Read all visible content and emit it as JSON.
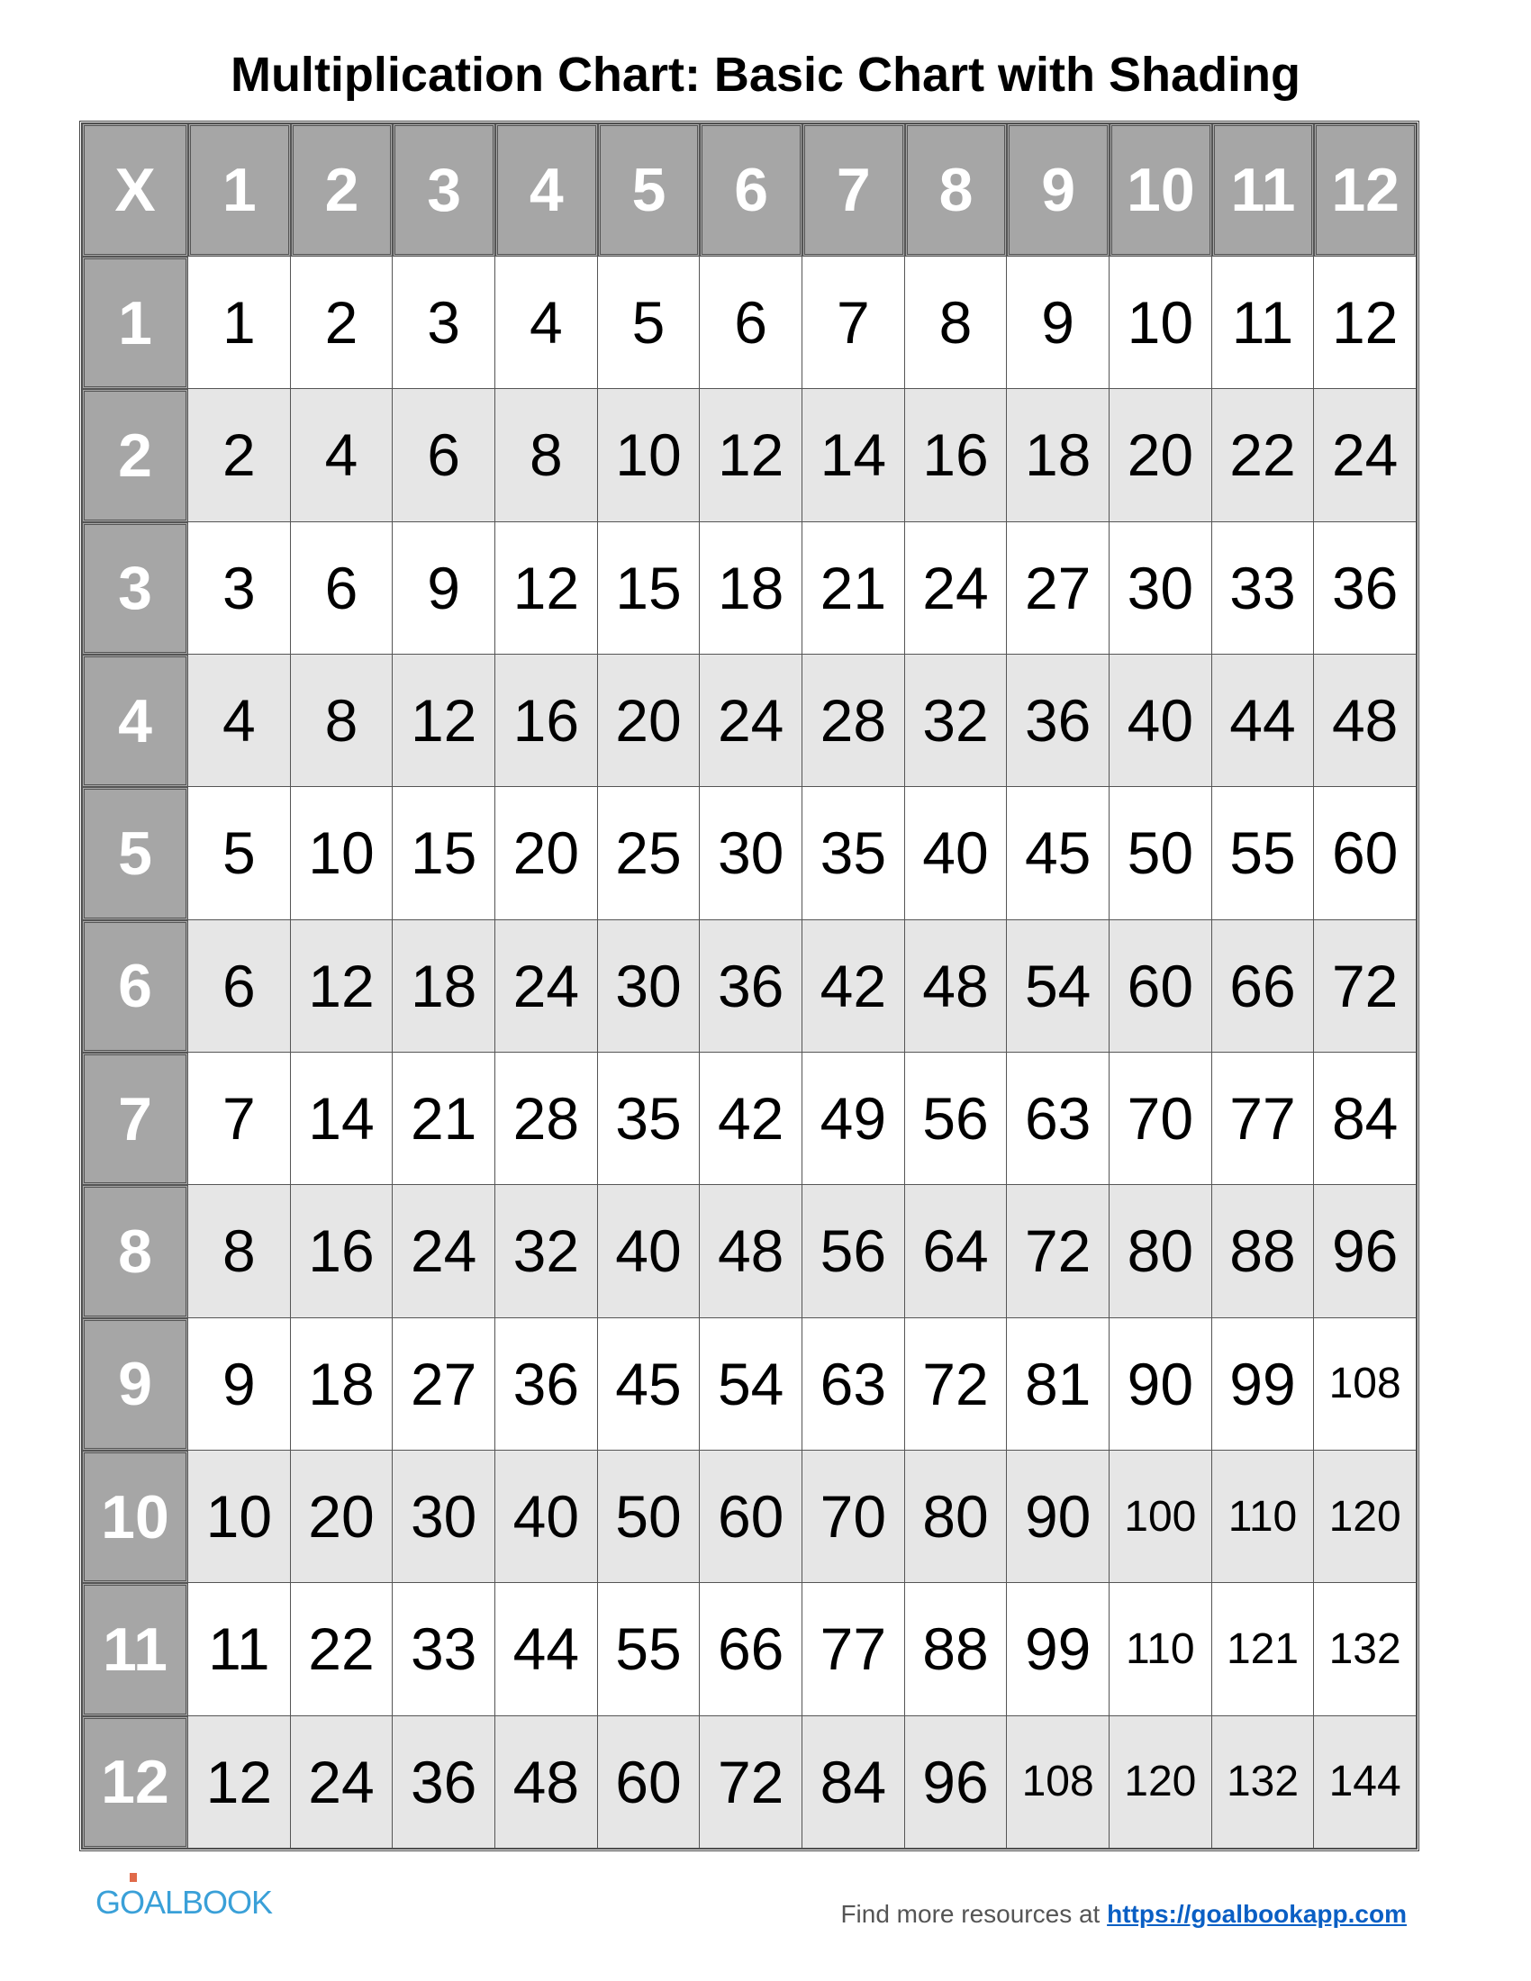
{
  "title": "Multiplication Chart: Basic Chart with Shading",
  "corner_label": "X",
  "column_headers": [
    "1",
    "2",
    "3",
    "4",
    "5",
    "6",
    "7",
    "8",
    "9",
    "10",
    "11",
    "12"
  ],
  "row_headers": [
    "1",
    "2",
    "3",
    "4",
    "5",
    "6",
    "7",
    "8",
    "9",
    "10",
    "11",
    "12"
  ],
  "rows": [
    [
      "1",
      "2",
      "3",
      "4",
      "5",
      "6",
      "7",
      "8",
      "9",
      "10",
      "11",
      "12"
    ],
    [
      "2",
      "4",
      "6",
      "8",
      "10",
      "12",
      "14",
      "16",
      "18",
      "20",
      "22",
      "24"
    ],
    [
      "3",
      "6",
      "9",
      "12",
      "15",
      "18",
      "21",
      "24",
      "27",
      "30",
      "33",
      "36"
    ],
    [
      "4",
      "8",
      "12",
      "16",
      "20",
      "24",
      "28",
      "32",
      "36",
      "40",
      "44",
      "48"
    ],
    [
      "5",
      "10",
      "15",
      "20",
      "25",
      "30",
      "35",
      "40",
      "45",
      "50",
      "55",
      "60"
    ],
    [
      "6",
      "12",
      "18",
      "24",
      "30",
      "36",
      "42",
      "48",
      "54",
      "60",
      "66",
      "72"
    ],
    [
      "7",
      "14",
      "21",
      "28",
      "35",
      "42",
      "49",
      "56",
      "63",
      "70",
      "77",
      "84"
    ],
    [
      "8",
      "16",
      "24",
      "32",
      "40",
      "48",
      "56",
      "64",
      "72",
      "80",
      "88",
      "96"
    ],
    [
      "9",
      "18",
      "27",
      "36",
      "45",
      "54",
      "63",
      "72",
      "81",
      "90",
      "99",
      "108"
    ],
    [
      "10",
      "20",
      "30",
      "40",
      "50",
      "60",
      "70",
      "80",
      "90",
      "100",
      "110",
      "120"
    ],
    [
      "11",
      "22",
      "33",
      "44",
      "55",
      "66",
      "77",
      "88",
      "99",
      "110",
      "121",
      "132"
    ],
    [
      "12",
      "24",
      "36",
      "48",
      "60",
      "72",
      "84",
      "96",
      "108",
      "120",
      "132",
      "144"
    ]
  ],
  "colors": {
    "header_bg": "#a6a6a6",
    "shaded_row_bg": "#e6e6e6",
    "link": "#0a5fc4",
    "logo": "#3aa0d8"
  },
  "footer": {
    "logo_text": "GOALBOOK",
    "text": "Find more resources at",
    "link": "https://goalbookapp.com"
  }
}
